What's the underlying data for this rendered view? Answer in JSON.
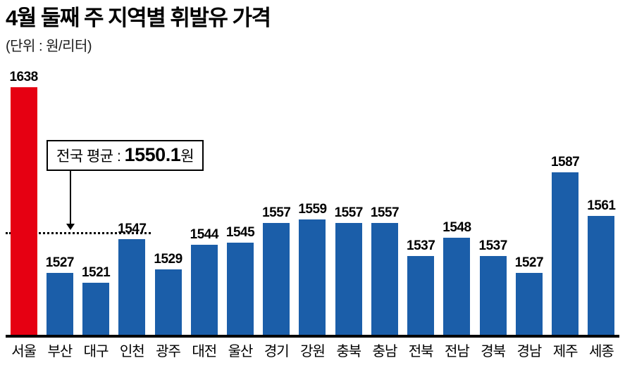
{
  "title": "4월 둘째 주 지역별 휘발유 가격",
  "subtitle": "(단위 : 원/리터)",
  "annotation": {
    "prefix": "전국 평균 : ",
    "value": "1550.1",
    "suffix": "원"
  },
  "colors": {
    "highlight": "#e60012",
    "bar": "#1b5ea9",
    "axis": "#000000"
  },
  "chart_data": {
    "type": "bar",
    "title": "4월 둘째 주 지역별 휘발유 가격",
    "unit": "원/리터",
    "categories": [
      "서울",
      "부산",
      "대구",
      "인천",
      "광주",
      "대전",
      "울산",
      "경기",
      "강원",
      "충북",
      "충남",
      "전북",
      "전남",
      "경북",
      "경남",
      "제주",
      "세종"
    ],
    "values": [
      1638,
      1527,
      1521,
      1547,
      1529,
      1544,
      1545,
      1557,
      1559,
      1557,
      1557,
      1537,
      1548,
      1537,
      1527,
      1587,
      1561
    ],
    "highlight_index": 0,
    "average": 1550.1,
    "average_label": "전국 평균 : 1550.1원",
    "xlabel": "",
    "ylabel": "원/리터",
    "ylim": [
      1490,
      1638
    ],
    "grid": false,
    "value_labels": true,
    "legend": "none"
  }
}
